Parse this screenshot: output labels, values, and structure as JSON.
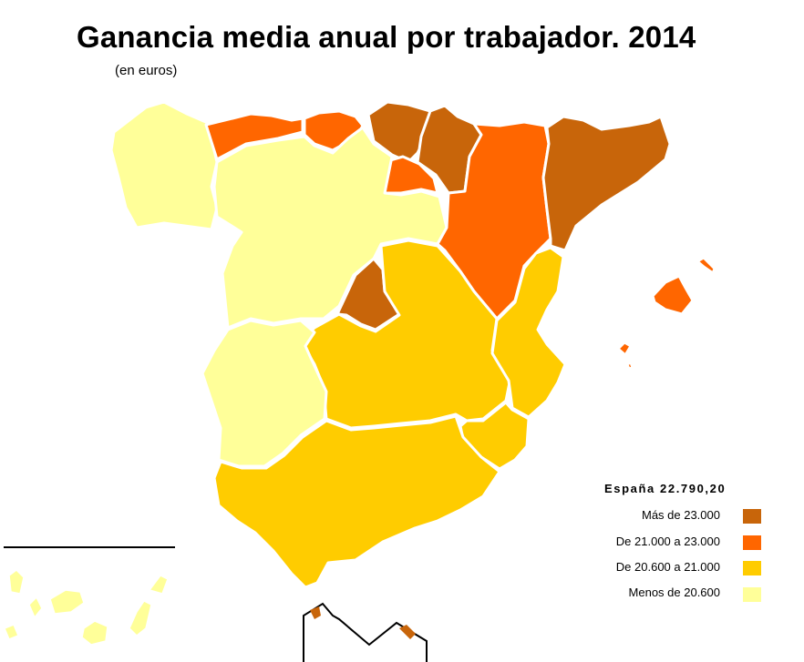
{
  "title": "Ganancia media anual por trabajador. 2014",
  "subtitle": "(en euros)",
  "colors": {
    "mas_23000": "#c8650a",
    "de_21000_23000": "#ff6600",
    "de_20600_21000": "#ffcc00",
    "menos_20600": "#ffff99",
    "border": "#ffffff"
  },
  "legend": {
    "title": "España 22.790,20",
    "items": [
      {
        "label": "Más de 23.000",
        "color": "#c8650a"
      },
      {
        "label": "De 21.000 a 23.000",
        "color": "#ff6600"
      },
      {
        "label": "De 20.600 a 21.000",
        "color": "#ffcc00"
      },
      {
        "label": "Menos de 20.600",
        "color": "#ffff99"
      }
    ]
  }
}
